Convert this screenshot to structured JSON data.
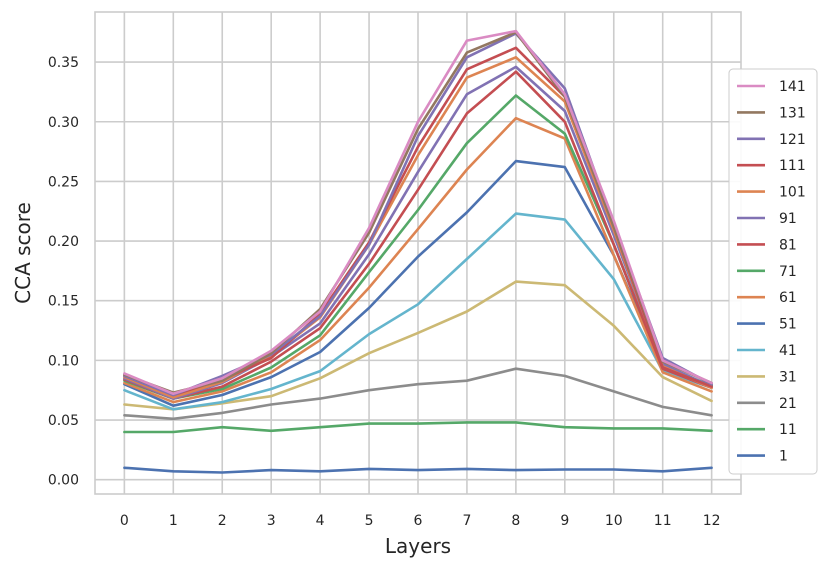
{
  "chart_data": {
    "type": "line",
    "title": "",
    "xlabel": "Layers",
    "ylabel": "CCA score",
    "x": [
      0,
      1,
      2,
      3,
      4,
      5,
      6,
      7,
      8,
      9,
      10,
      11,
      12
    ],
    "xlim": [
      -0.6,
      12.6
    ],
    "ylim": [
      -0.012,
      0.392
    ],
    "yticks": [
      0.0,
      0.05,
      0.1,
      0.15,
      0.2,
      0.25,
      0.3,
      0.35
    ],
    "ytick_labels": [
      "0.00",
      "0.05",
      "0.10",
      "0.15",
      "0.20",
      "0.25",
      "0.30",
      "0.35"
    ],
    "xtick_labels": [
      "0",
      "1",
      "2",
      "3",
      "4",
      "5",
      "6",
      "7",
      "8",
      "9",
      "10",
      "11",
      "12"
    ],
    "grid": true,
    "legend_position": "right",
    "series": [
      {
        "name": "1",
        "color": "#4c72b0",
        "values": [
          0.01,
          0.007,
          0.006,
          0.008,
          0.007,
          0.009,
          0.008,
          0.009,
          0.008,
          0.0085,
          0.0085,
          0.007,
          0.01
        ]
      },
      {
        "name": "11",
        "color": "#55a868",
        "values": [
          0.04,
          0.04,
          0.044,
          0.041,
          0.044,
          0.047,
          0.047,
          0.048,
          0.048,
          0.044,
          0.043,
          0.043,
          0.041
        ]
      },
      {
        "name": "21",
        "color": "#8c8c8c",
        "values": [
          0.054,
          0.051,
          0.056,
          0.063,
          0.068,
          0.075,
          0.08,
          0.083,
          0.093,
          0.087,
          0.074,
          0.061,
          0.054
        ]
      },
      {
        "name": "31",
        "color": "#ccb974",
        "values": [
          0.063,
          0.059,
          0.064,
          0.07,
          0.085,
          0.106,
          0.123,
          0.141,
          0.166,
          0.163,
          0.129,
          0.086,
          0.066
        ]
      },
      {
        "name": "41",
        "color": "#64b5cd",
        "values": [
          0.075,
          0.059,
          0.065,
          0.076,
          0.091,
          0.122,
          0.147,
          0.185,
          0.223,
          0.218,
          0.168,
          0.091,
          0.077
        ]
      },
      {
        "name": "51",
        "color": "#4c72b0",
        "values": [
          0.08,
          0.062,
          0.071,
          0.086,
          0.107,
          0.144,
          0.187,
          0.224,
          0.267,
          0.262,
          0.188,
          0.093,
          0.079
        ]
      },
      {
        "name": "61",
        "color": "#dd8452",
        "values": [
          0.081,
          0.065,
          0.074,
          0.09,
          0.117,
          0.161,
          0.21,
          0.26,
          0.303,
          0.286,
          0.188,
          0.09,
          0.074
        ]
      },
      {
        "name": "71",
        "color": "#55a868",
        "values": [
          0.083,
          0.068,
          0.076,
          0.094,
          0.121,
          0.174,
          0.226,
          0.282,
          0.322,
          0.29,
          0.197,
          0.094,
          0.079
        ]
      },
      {
        "name": "81",
        "color": "#c44e52",
        "values": [
          0.084,
          0.068,
          0.078,
          0.099,
          0.127,
          0.181,
          0.243,
          0.307,
          0.342,
          0.3,
          0.197,
          0.093,
          0.077
        ]
      },
      {
        "name": "91",
        "color": "#8172b3",
        "values": [
          0.085,
          0.068,
          0.081,
          0.103,
          0.131,
          0.189,
          0.258,
          0.323,
          0.346,
          0.309,
          0.205,
          0.097,
          0.078
        ]
      },
      {
        "name": "101",
        "color": "#dd8452",
        "values": [
          0.086,
          0.069,
          0.082,
          0.104,
          0.136,
          0.197,
          0.272,
          0.337,
          0.354,
          0.317,
          0.209,
          0.095,
          0.077
        ]
      },
      {
        "name": "111",
        "color": "#c44e52",
        "values": [
          0.087,
          0.071,
          0.084,
          0.102,
          0.139,
          0.199,
          0.279,
          0.344,
          0.362,
          0.321,
          0.212,
          0.094,
          0.078
        ]
      },
      {
        "name": "121",
        "color": "#8172b3",
        "values": [
          0.087,
          0.071,
          0.087,
          0.105,
          0.137,
          0.197,
          0.288,
          0.354,
          0.374,
          0.328,
          0.214,
          0.102,
          0.08
        ]
      },
      {
        "name": "131",
        "color": "#937860",
        "values": [
          0.088,
          0.073,
          0.083,
          0.106,
          0.143,
          0.207,
          0.294,
          0.358,
          0.375,
          0.321,
          0.212,
          0.099,
          0.081
        ]
      },
      {
        "name": "141",
        "color": "#da8bc3",
        "values": [
          0.089,
          0.072,
          0.085,
          0.108,
          0.141,
          0.211,
          0.3,
          0.368,
          0.376,
          0.323,
          0.217,
          0.1,
          0.081
        ]
      }
    ],
    "legend_order": [
      "141",
      "131",
      "121",
      "111",
      "101",
      "91",
      "81",
      "71",
      "61",
      "51",
      "41",
      "31",
      "21",
      "11",
      "1"
    ]
  }
}
